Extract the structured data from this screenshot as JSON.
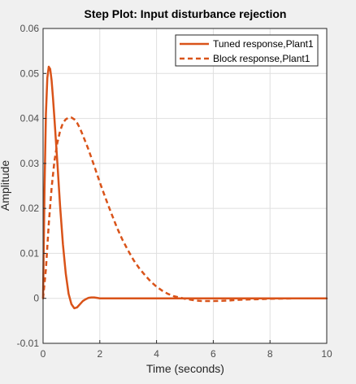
{
  "chart_data": {
    "type": "line",
    "title": "Step Plot: Input disturbance rejection",
    "xlabel": "Time (seconds)",
    "ylabel": "Amplitude",
    "xlim": [
      0,
      10
    ],
    "ylim": [
      -0.01,
      0.06
    ],
    "xticks": [
      0,
      2,
      4,
      6,
      8,
      10
    ],
    "yticks": [
      -0.01,
      0,
      0.01,
      0.02,
      0.03,
      0.04,
      0.05,
      0.06
    ],
    "xtick_labels": [
      "0",
      "2",
      "4",
      "6",
      "8",
      "10"
    ],
    "ytick_labels": [
      "-0.01",
      "0",
      "0.01",
      "0.02",
      "0.03",
      "0.04",
      "0.05",
      "0.06"
    ],
    "grid": true,
    "legend_position": "top-right",
    "series": [
      {
        "name": "Tuned response,Plant1",
        "style": "solid",
        "color": "#d95319",
        "x": [
          0,
          0.05,
          0.1,
          0.15,
          0.2,
          0.25,
          0.3,
          0.35,
          0.4,
          0.5,
          0.6,
          0.7,
          0.8,
          0.9,
          1.0,
          1.1,
          1.2,
          1.3,
          1.4,
          1.5,
          1.6,
          1.7,
          1.8,
          1.9,
          2.0,
          2.2,
          2.5,
          3,
          4,
          5,
          6,
          7,
          8,
          9,
          10
        ],
        "y": [
          0,
          0.024,
          0.041,
          0.049,
          0.0515,
          0.051,
          0.0485,
          0.0445,
          0.04,
          0.0305,
          0.0205,
          0.012,
          0.0055,
          0.001,
          -0.0013,
          -0.0022,
          -0.002,
          -0.0013,
          -0.0006,
          -0.0002,
          0.0001,
          0.0002,
          0.0002,
          0.0001,
          0,
          0,
          0,
          0,
          0,
          0,
          0,
          0,
          0,
          0,
          0
        ]
      },
      {
        "name": "Block response,Plant1",
        "style": "dashed",
        "color": "#d95319",
        "x": [
          0,
          0.1,
          0.2,
          0.3,
          0.4,
          0.5,
          0.6,
          0.7,
          0.8,
          0.9,
          1.0,
          1.1,
          1.2,
          1.3,
          1.4,
          1.6,
          1.8,
          2.0,
          2.2,
          2.4,
          2.6,
          2.8,
          3.0,
          3.2,
          3.4,
          3.6,
          3.8,
          4.0,
          4.2,
          4.4,
          4.6,
          4.8,
          5.0,
          5.2,
          5.4,
          5.6,
          5.8,
          6.0,
          6.5,
          7.0,
          7.5,
          8,
          9,
          10
        ],
        "y": [
          0,
          0.0065,
          0.0165,
          0.0245,
          0.0305,
          0.0345,
          0.0372,
          0.039,
          0.0398,
          0.0402,
          0.0402,
          0.0398,
          0.039,
          0.0378,
          0.0363,
          0.0331,
          0.0295,
          0.0258,
          0.0223,
          0.019,
          0.0158,
          0.013,
          0.0106,
          0.0084,
          0.0066,
          0.0051,
          0.0037,
          0.0026,
          0.0017,
          0.001,
          0.0005,
          0.0002,
          -0.0001,
          -0.0003,
          -0.0005,
          -0.0006,
          -0.0006,
          -0.0006,
          -0.0005,
          -0.0003,
          -0.0002,
          -0.0001,
          0,
          0
        ]
      }
    ]
  }
}
